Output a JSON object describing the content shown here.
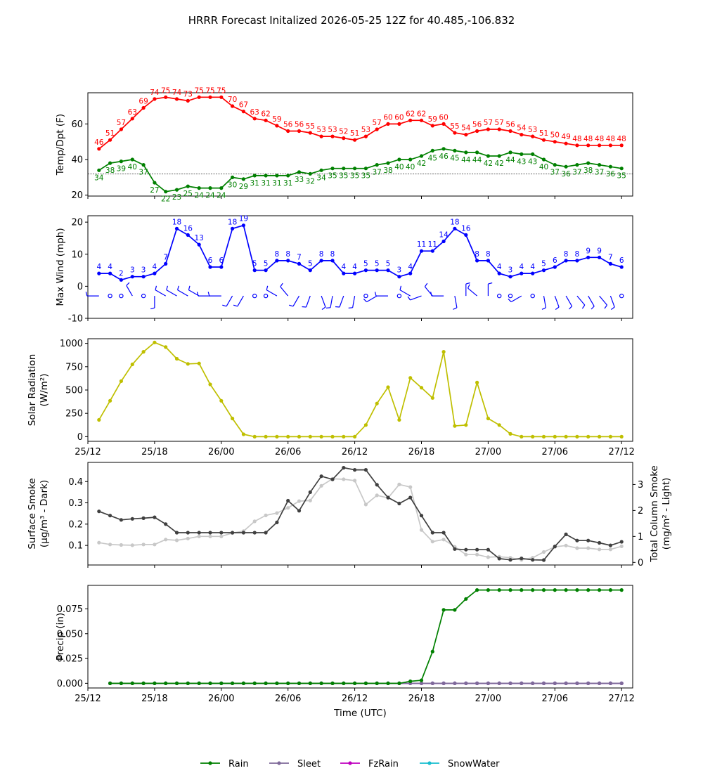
{
  "title": "HRRR Forecast Initalized 2026-05-25 12Z for 40.485,-106.832",
  "chart_data": [
    {
      "type": "line",
      "panel": "temperature",
      "ylabel": "Temp/Dpt (F)",
      "ylim": [
        19.5,
        77.5
      ],
      "yticks": [
        20,
        40,
        60
      ],
      "x_hours": [
        1,
        2,
        3,
        4,
        5,
        6,
        7,
        8,
        9,
        10,
        11,
        12,
        13,
        14,
        15,
        16,
        17,
        18,
        19,
        20,
        21,
        22,
        23,
        24,
        25,
        26,
        27,
        28,
        29,
        30,
        31,
        32,
        33,
        34,
        35,
        36,
        37,
        38,
        39,
        40,
        41,
        42,
        43,
        44,
        45,
        46,
        47,
        48
      ],
      "reference_line": 32,
      "series": [
        {
          "name": "",
          "color": "#ff0000",
          "values": [
            46,
            51,
            57,
            63,
            69,
            74,
            75,
            74,
            73,
            75,
            75,
            75,
            70,
            67,
            63,
            62,
            59,
            56,
            56,
            55,
            53,
            53,
            52,
            51,
            53,
            57,
            60,
            60,
            62,
            62,
            59,
            60,
            55,
            54,
            56,
            57,
            57,
            56,
            54,
            53,
            51,
            50,
            49,
            48,
            48,
            48,
            48,
            48
          ]
        },
        {
          "name": "",
          "color": "#008000",
          "values": [
            34,
            38,
            39,
            40,
            37,
            27,
            22,
            23,
            25,
            24,
            24,
            24,
            30,
            29,
            31,
            31,
            31,
            31,
            33,
            32,
            34,
            35,
            35,
            35,
            35,
            37,
            38,
            40,
            40,
            42,
            45,
            46,
            45,
            44,
            44,
            42,
            42,
            44,
            43,
            43,
            40,
            37,
            36,
            37,
            38,
            37,
            36,
            35
          ]
        }
      ]
    },
    {
      "type": "line",
      "panel": "wind",
      "ylabel": "Max Wind (mph)",
      "ylim": [
        -10,
        22
      ],
      "yticks": [
        -10,
        0,
        10,
        20
      ],
      "series": [
        {
          "name": "",
          "color": "#0000ff",
          "values": [
            4,
            4,
            2,
            3,
            3,
            4,
            7,
            18,
            16,
            13,
            6,
            6,
            18,
            19,
            5,
            5,
            8,
            8,
            7,
            5,
            8,
            8,
            4,
            4,
            5,
            5,
            5,
            3,
            4,
            11,
            11,
            14,
            18,
            16,
            8,
            8,
            4,
            3,
            4,
            4,
            5,
            6,
            8,
            8,
            9,
            9,
            7,
            6
          ]
        }
      ],
      "wind_barbs": {
        "row_value": -3,
        "calm_flags": [
          0,
          1,
          1,
          0,
          1,
          0,
          0,
          0,
          0,
          0,
          0,
          0,
          0,
          0,
          1,
          1,
          0,
          0,
          0,
          0,
          0,
          0,
          0,
          0,
          1,
          0,
          0,
          1,
          0,
          0,
          0,
          0,
          0,
          0,
          0,
          0,
          1,
          1,
          0,
          1,
          0,
          0,
          0,
          0,
          0,
          0,
          0,
          1
        ],
        "directions_deg": [
          270,
          0,
          0,
          330,
          0,
          180,
          300,
          300,
          300,
          300,
          270,
          270,
          210,
          210,
          0,
          0,
          300,
          320,
          210,
          200,
          160,
          190,
          200,
          190,
          0,
          240,
          270,
          0,
          300,
          250,
          320,
          270,
          170,
          0,
          310,
          0,
          0,
          0,
          240,
          0,
          170,
          160,
          150,
          140,
          150,
          140,
          160,
          0
        ]
      }
    },
    {
      "type": "line",
      "panel": "solar",
      "ylabel": "Solar Radiation (W/m²)",
      "ylim": [
        -50,
        1050
      ],
      "yticks": [
        0,
        250,
        500,
        750,
        1000
      ],
      "series": [
        {
          "name": "",
          "color": "#bfbf00",
          "values": [
            180,
            385,
            595,
            775,
            910,
            1010,
            960,
            835,
            780,
            785,
            560,
            385,
            195,
            25,
            0,
            0,
            0,
            0,
            0,
            0,
            0,
            0,
            0,
            0,
            125,
            355,
            530,
            180,
            630,
            525,
            415,
            910,
            115,
            125,
            580,
            195,
            125,
            30,
            0,
            0,
            0,
            0,
            0,
            0,
            0,
            0,
            0,
            0
          ]
        }
      ]
    },
    {
      "type": "line",
      "panel": "smoke",
      "ylabel": "Surface Smoke (μg/m³ - Dark)",
      "ylabel_right": "Total Column Smoke (mg/m² - Light)",
      "ylim": [
        0.008,
        0.49
      ],
      "yticks": [
        0.1,
        0.2,
        0.3,
        0.4
      ],
      "ylim_right": [
        -0.1,
        3.85
      ],
      "yticks_right": [
        0,
        1,
        2,
        3
      ],
      "series": [
        {
          "name": "",
          "color": "#404040",
          "axis": "left",
          "values": [
            0.26,
            0.24,
            0.22,
            0.225,
            0.228,
            0.232,
            0.2,
            0.16,
            0.16,
            0.16,
            0.16,
            0.16,
            0.16,
            0.16,
            0.16,
            0.16,
            0.208,
            0.31,
            0.263,
            0.35,
            0.425,
            0.41,
            0.465,
            0.455,
            0.455,
            0.385,
            0.325,
            0.297,
            0.325,
            0.24,
            0.16,
            0.16,
            0.083,
            0.08,
            0.08,
            0.08,
            0.038,
            0.032,
            0.039,
            0.032,
            0.031,
            0.095,
            0.152,
            0.123,
            0.123,
            0.112,
            0.1,
            0.117
          ]
        },
        {
          "name": "",
          "color": "#c8c8c8",
          "axis": "right",
          "values": [
            0.76,
            0.69,
            0.67,
            0.66,
            0.69,
            0.69,
            0.88,
            0.85,
            0.92,
            1.0,
            1.0,
            1.0,
            1.13,
            1.2,
            1.58,
            1.81,
            1.9,
            2.1,
            2.36,
            2.38,
            2.95,
            3.22,
            3.2,
            3.15,
            2.23,
            2.58,
            2.48,
            3.0,
            2.9,
            1.25,
            0.8,
            0.88,
            0.6,
            0.3,
            0.3,
            0.2,
            0.22,
            0.18,
            0.1,
            0.18,
            0.4,
            0.6,
            0.65,
            0.55,
            0.55,
            0.5,
            0.5,
            0.62
          ]
        }
      ]
    },
    {
      "type": "line",
      "panel": "precip",
      "ylabel": "Precip (in)",
      "xlabel": "Time (UTC)",
      "ylim": [
        -0.0047,
        0.0987
      ],
      "yticks": [
        0.0,
        0.025,
        0.05,
        0.075
      ],
      "x_hours_start": 2,
      "series": [
        {
          "name": "Rain",
          "color": "#008000",
          "values": [
            0,
            0,
            0,
            0,
            0,
            0,
            0,
            0,
            0,
            0,
            0,
            0,
            0,
            0,
            0,
            0,
            0,
            0,
            0,
            0,
            0,
            0,
            0,
            0,
            0,
            0,
            0,
            0.002,
            0.003,
            0.032,
            0.074,
            0.074,
            0.085,
            0.094,
            0.094,
            0.094,
            0.094,
            0.094,
            0.094,
            0.094,
            0.094,
            0.094,
            0.094,
            0.094,
            0.094,
            0.094,
            0.094
          ]
        },
        {
          "name": "Sleet",
          "color": "#7f6a9a",
          "values": [
            0,
            0,
            0,
            0,
            0,
            0,
            0,
            0,
            0,
            0,
            0,
            0,
            0,
            0,
            0,
            0,
            0,
            0,
            0,
            0,
            0,
            0,
            0,
            0,
            0,
            0,
            0,
            0,
            0,
            0,
            0,
            0,
            0,
            0,
            0,
            0,
            0,
            0,
            0,
            0,
            0,
            0,
            0,
            0,
            0,
            0,
            0
          ]
        },
        {
          "name": "FzRain",
          "color": "#bf00bf",
          "values": [
            0,
            0,
            0,
            0,
            0,
            0,
            0,
            0,
            0,
            0,
            0,
            0,
            0,
            0,
            0,
            0,
            0,
            0,
            0,
            0,
            0,
            0,
            0,
            0,
            0,
            0,
            0,
            0,
            0,
            0,
            0,
            0,
            0,
            0,
            0,
            0,
            0,
            0,
            0,
            0,
            0,
            0,
            0,
            0,
            0,
            0,
            0
          ]
        },
        {
          "name": "SnowWater",
          "color": "#17becf",
          "values": [
            0,
            0,
            0,
            0,
            0,
            0,
            0,
            0,
            0,
            0,
            0,
            0,
            0,
            0,
            0,
            0,
            0,
            0,
            0,
            0,
            0,
            0,
            0,
            0,
            0,
            0,
            0,
            0,
            0,
            0,
            0,
            0,
            0,
            0,
            0,
            0,
            0,
            0,
            0,
            0,
            0,
            0,
            0,
            0,
            0,
            0,
            0
          ]
        }
      ]
    }
  ],
  "xaxis": {
    "range_hours": [
      0,
      49
    ],
    "tick_hours": [
      0,
      6,
      12,
      18,
      24,
      30,
      36,
      42,
      48
    ],
    "tick_labels": [
      "25/12",
      "25/18",
      "26/00",
      "26/06",
      "26/12",
      "26/18",
      "27/00",
      "27/06",
      "27/12"
    ]
  },
  "legend": {
    "placement": "bottom-center",
    "items": [
      "Rain",
      "Sleet",
      "FzRain",
      "SnowWater"
    ]
  }
}
